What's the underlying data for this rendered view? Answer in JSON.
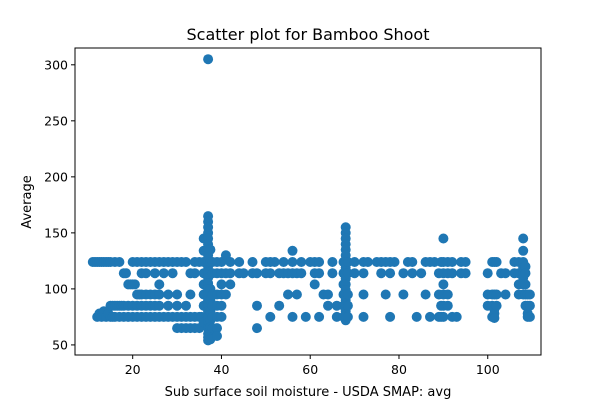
{
  "chart_data": {
    "type": "scatter",
    "title": "Scatter plot for Bamboo Shoot",
    "xlabel": "Sub surface soil moisture - USDA SMAP: avg",
    "ylabel": "Average",
    "xlim": [
      7,
      112
    ],
    "ylim": [
      41,
      315
    ],
    "xticks": [
      20,
      40,
      60,
      80,
      100
    ],
    "yticks": [
      50,
      100,
      150,
      200,
      250,
      300
    ],
    "marker_color": "#1f77b4",
    "grid": false,
    "legend": "none",
    "points": [
      [
        11,
        124
      ],
      [
        11.5,
        124
      ],
      [
        12,
        124
      ],
      [
        12.5,
        124
      ],
      [
        13,
        124
      ],
      [
        13.5,
        124
      ],
      [
        14,
        124
      ],
      [
        14.5,
        124
      ],
      [
        15,
        124
      ],
      [
        16,
        124
      ],
      [
        17,
        124
      ],
      [
        12,
        75
      ],
      [
        12.5,
        78
      ],
      [
        13,
        75
      ],
      [
        13.5,
        80
      ],
      [
        14,
        75
      ],
      [
        14.5,
        78
      ],
      [
        15,
        75
      ],
      [
        15.5,
        75
      ],
      [
        16,
        75
      ],
      [
        17,
        75
      ],
      [
        18,
        75
      ],
      [
        19,
        75
      ],
      [
        20,
        75
      ],
      [
        21,
        75
      ],
      [
        22,
        75
      ],
      [
        23,
        75
      ],
      [
        24,
        75
      ],
      [
        25,
        75
      ],
      [
        26,
        75
      ],
      [
        27,
        75
      ],
      [
        28,
        75
      ],
      [
        29,
        75
      ],
      [
        30,
        75
      ],
      [
        31,
        75
      ],
      [
        32,
        75
      ],
      [
        33,
        75
      ],
      [
        34,
        75
      ],
      [
        15,
        85
      ],
      [
        15.5,
        85
      ],
      [
        16,
        85
      ],
      [
        16.5,
        85
      ],
      [
        17,
        85
      ],
      [
        17.5,
        85
      ],
      [
        18,
        85
      ],
      [
        19,
        85
      ],
      [
        20,
        85
      ],
      [
        21,
        85
      ],
      [
        22,
        85
      ],
      [
        23,
        85
      ],
      [
        24,
        85
      ],
      [
        25,
        85
      ],
      [
        26,
        85
      ],
      [
        28,
        85
      ],
      [
        30,
        85
      ],
      [
        32,
        85
      ],
      [
        18,
        114
      ],
      [
        18.5,
        114
      ],
      [
        19,
        104
      ],
      [
        19.5,
        104
      ],
      [
        20,
        104
      ],
      [
        20.5,
        104
      ],
      [
        21,
        95
      ],
      [
        21.5,
        95
      ],
      [
        22,
        95
      ],
      [
        23,
        95
      ],
      [
        24,
        95
      ],
      [
        25,
        95
      ],
      [
        26,
        95
      ],
      [
        20,
        124
      ],
      [
        21,
        124
      ],
      [
        22,
        124
      ],
      [
        23,
        124
      ],
      [
        24,
        124
      ],
      [
        25,
        124
      ],
      [
        26,
        124
      ],
      [
        27,
        124
      ],
      [
        28,
        124
      ],
      [
        29,
        124
      ],
      [
        30,
        124
      ],
      [
        31,
        124
      ],
      [
        32,
        124
      ],
      [
        34,
        124
      ],
      [
        35,
        124
      ],
      [
        22,
        114
      ],
      [
        23,
        114
      ],
      [
        25,
        114
      ],
      [
        27,
        114
      ],
      [
        29,
        114
      ],
      [
        33,
        114
      ],
      [
        34,
        114
      ],
      [
        26,
        104
      ],
      [
        26,
        95
      ],
      [
        28,
        95
      ],
      [
        30,
        95
      ],
      [
        33,
        95
      ],
      [
        30,
        65
      ],
      [
        31,
        65
      ],
      [
        32,
        65
      ],
      [
        33,
        65
      ],
      [
        34,
        65
      ],
      [
        35,
        65
      ],
      [
        35,
        75
      ],
      [
        35.5,
        75
      ],
      [
        36,
        70
      ],
      [
        36,
        85
      ],
      [
        36,
        95
      ],
      [
        36,
        104
      ],
      [
        36,
        114
      ],
      [
        36,
        124
      ],
      [
        36,
        134
      ],
      [
        36,
        145
      ],
      [
        37,
        305
      ],
      [
        37,
        165
      ],
      [
        37,
        160
      ],
      [
        37,
        155
      ],
      [
        37,
        150
      ],
      [
        37,
        145
      ],
      [
        37,
        140
      ],
      [
        37,
        135
      ],
      [
        37,
        130
      ],
      [
        37,
        125
      ],
      [
        37,
        120
      ],
      [
        37,
        115
      ],
      [
        37,
        110
      ],
      [
        37,
        105
      ],
      [
        37,
        100
      ],
      [
        37,
        95
      ],
      [
        37,
        90
      ],
      [
        37,
        85
      ],
      [
        37,
        80
      ],
      [
        37,
        75
      ],
      [
        37,
        70
      ],
      [
        37,
        65
      ],
      [
        37,
        60
      ],
      [
        37,
        57
      ],
      [
        37,
        54
      ],
      [
        37.5,
        135
      ],
      [
        37.5,
        124
      ],
      [
        37.5,
        100
      ],
      [
        37.5,
        90
      ],
      [
        37.5,
        80
      ],
      [
        37.5,
        72
      ],
      [
        37.5,
        66
      ],
      [
        37.5,
        60
      ],
      [
        37.5,
        55
      ],
      [
        38,
        124
      ],
      [
        38,
        114
      ],
      [
        38,
        95
      ],
      [
        38,
        85
      ],
      [
        38,
        75
      ],
      [
        38,
        65
      ],
      [
        39,
        124
      ],
      [
        39,
        114
      ],
      [
        39,
        95
      ],
      [
        39,
        85
      ],
      [
        39,
        75
      ],
      [
        39,
        65
      ],
      [
        39,
        58
      ],
      [
        40,
        124
      ],
      [
        40,
        114
      ],
      [
        40,
        104
      ],
      [
        40,
        95
      ],
      [
        40,
        85
      ],
      [
        40,
        75
      ],
      [
        41,
        130
      ],
      [
        41,
        114
      ],
      [
        41,
        95
      ],
      [
        42,
        124
      ],
      [
        42,
        114
      ],
      [
        42,
        104
      ],
      [
        44,
        124
      ],
      [
        44,
        114
      ],
      [
        45,
        114
      ],
      [
        47,
        124
      ],
      [
        47,
        114
      ],
      [
        48,
        114
      ],
      [
        48,
        85
      ],
      [
        48,
        65
      ],
      [
        50,
        124
      ],
      [
        50,
        114
      ],
      [
        51,
        124
      ],
      [
        51,
        114
      ],
      [
        51,
        75
      ],
      [
        52,
        124
      ],
      [
        53,
        114
      ],
      [
        53,
        85
      ],
      [
        54,
        124
      ],
      [
        54,
        114
      ],
      [
        55,
        114
      ],
      [
        55,
        95
      ],
      [
        56,
        134
      ],
      [
        56,
        124
      ],
      [
        56,
        114
      ],
      [
        56,
        75
      ],
      [
        57,
        114
      ],
      [
        57,
        95
      ],
      [
        58,
        124
      ],
      [
        58,
        114
      ],
      [
        59,
        75
      ],
      [
        60,
        124
      ],
      [
        61,
        124
      ],
      [
        61,
        114
      ],
      [
        61,
        104
      ],
      [
        62,
        124
      ],
      [
        62,
        114
      ],
      [
        62,
        75
      ],
      [
        63,
        95
      ],
      [
        64,
        95
      ],
      [
        64,
        85
      ],
      [
        65,
        124
      ],
      [
        65,
        114
      ],
      [
        66,
        75
      ],
      [
        66,
        85
      ],
      [
        67.5,
        124
      ],
      [
        67.5,
        114
      ],
      [
        67.5,
        104
      ],
      [
        67.5,
        95
      ],
      [
        67.5,
        85
      ],
      [
        67.5,
        75
      ],
      [
        68,
        155
      ],
      [
        68,
        150
      ],
      [
        68,
        145
      ],
      [
        68,
        140
      ],
      [
        68,
        135
      ],
      [
        68,
        130
      ],
      [
        68,
        124
      ],
      [
        68,
        119
      ],
      [
        68,
        114
      ],
      [
        68,
        109
      ],
      [
        68,
        104
      ],
      [
        68,
        99
      ],
      [
        68,
        95
      ],
      [
        68,
        90
      ],
      [
        68,
        85
      ],
      [
        68,
        80
      ],
      [
        68,
        75
      ],
      [
        68,
        72
      ],
      [
        68.5,
        124
      ],
      [
        68.5,
        114
      ],
      [
        68.5,
        95
      ],
      [
        68.5,
        85
      ],
      [
        68.5,
        75
      ],
      [
        70,
        124
      ],
      [
        70,
        114
      ],
      [
        72,
        124
      ],
      [
        72,
        114
      ],
      [
        72,
        95
      ],
      [
        72,
        75
      ],
      [
        73,
        124
      ],
      [
        75,
        124
      ],
      [
        76,
        124
      ],
      [
        76,
        114
      ],
      [
        77,
        124
      ],
      [
        77,
        95
      ],
      [
        78,
        124
      ],
      [
        78,
        114
      ],
      [
        78,
        75
      ],
      [
        79,
        124
      ],
      [
        81,
        114
      ],
      [
        81,
        95
      ],
      [
        82,
        124
      ],
      [
        83,
        124
      ],
      [
        83,
        114
      ],
      [
        84,
        75
      ],
      [
        85,
        114
      ],
      [
        86,
        124
      ],
      [
        86,
        95
      ],
      [
        87,
        124
      ],
      [
        87,
        75
      ],
      [
        88,
        124
      ],
      [
        89,
        114
      ],
      [
        89,
        95
      ],
      [
        89,
        75
      ],
      [
        89.5,
        124
      ],
      [
        89.5,
        85
      ],
      [
        89.5,
        75
      ],
      [
        90,
        145
      ],
      [
        90,
        124
      ],
      [
        90,
        114
      ],
      [
        90,
        104
      ],
      [
        90,
        95
      ],
      [
        90,
        85
      ],
      [
        90,
        75
      ],
      [
        91,
        124
      ],
      [
        91,
        114
      ],
      [
        91,
        95
      ],
      [
        91,
        85
      ],
      [
        92,
        124
      ],
      [
        92,
        114
      ],
      [
        92,
        75
      ],
      [
        93,
        75
      ],
      [
        94,
        124
      ],
      [
        94,
        114
      ],
      [
        95,
        124
      ],
      [
        95,
        114
      ],
      [
        100,
        114
      ],
      [
        100,
        95
      ],
      [
        100,
        85
      ],
      [
        101,
        124
      ],
      [
        101,
        95
      ],
      [
        101,
        85
      ],
      [
        101,
        75
      ],
      [
        101.5,
        124
      ],
      [
        101.5,
        95
      ],
      [
        101.5,
        82
      ],
      [
        101.5,
        78
      ],
      [
        101.5,
        74
      ],
      [
        102,
        124
      ],
      [
        102,
        95
      ],
      [
        102,
        85
      ],
      [
        103,
        114
      ],
      [
        104,
        114
      ],
      [
        104,
        95
      ],
      [
        106,
        124
      ],
      [
        106,
        114
      ],
      [
        107,
        124
      ],
      [
        107,
        114
      ],
      [
        107,
        104
      ],
      [
        107,
        95
      ],
      [
        108,
        145
      ],
      [
        108,
        134
      ],
      [
        108,
        124
      ],
      [
        108,
        119
      ],
      [
        108,
        114
      ],
      [
        108,
        110
      ],
      [
        108,
        104
      ],
      [
        108,
        95
      ],
      [
        108.5,
        120
      ],
      [
        108.5,
        114
      ],
      [
        108.5,
        104
      ],
      [
        108.5,
        95
      ],
      [
        108.5,
        85
      ],
      [
        109,
        95
      ],
      [
        109,
        85
      ],
      [
        109,
        78
      ],
      [
        109,
        75
      ],
      [
        109.5,
        95
      ],
      [
        109.5,
        85
      ],
      [
        109.5,
        75
      ]
    ]
  }
}
